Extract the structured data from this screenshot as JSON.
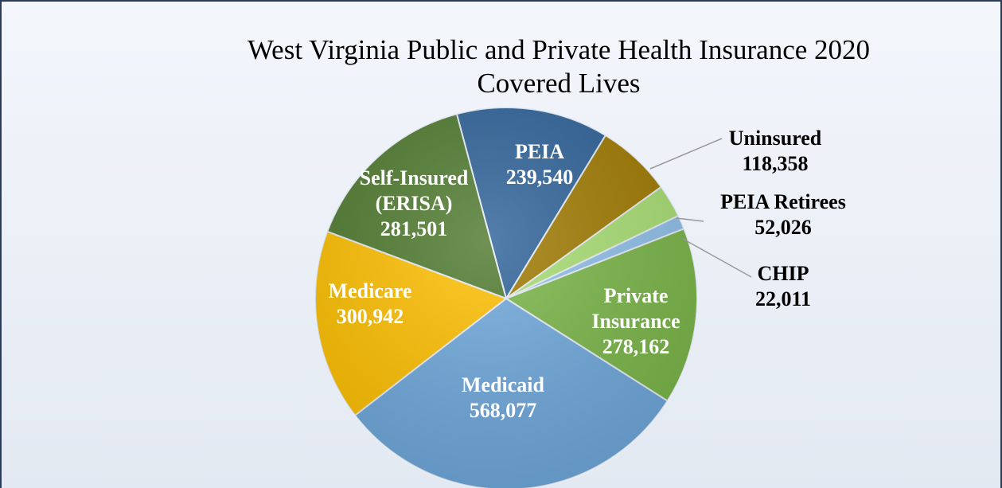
{
  "chart_data": {
    "type": "pie",
    "title": "West Virginia Public and Private Health Insurance 2020 Covered Lives",
    "categories": [
      "PEIA",
      "Uninsured",
      "PEIA Retirees",
      "CHIP",
      "Private Insurance",
      "Medicaid",
      "Medicare",
      "Self-Insured (ERISA)"
    ],
    "values": [
      239540,
      118358,
      52026,
      22011,
      278162,
      568077,
      300942,
      281501
    ],
    "value_labels": [
      "239,540",
      "118,358",
      "52,026",
      "22,011",
      "278,162",
      "568,077",
      "300,942",
      "281,501"
    ],
    "colors": [
      "#2e6299",
      "#a07a00",
      "#a9df74",
      "#8fc0ea",
      "#7ab648",
      "#6fa8dc",
      "#ffc000",
      "#4f7a2e"
    ]
  }
}
